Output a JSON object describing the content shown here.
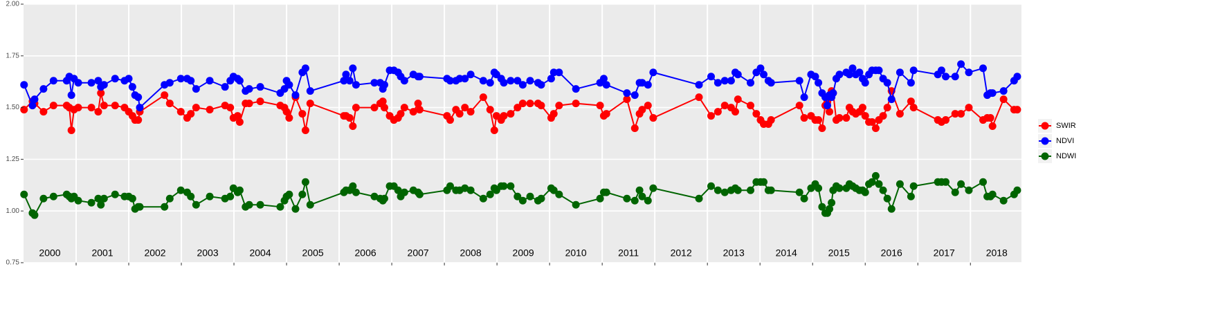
{
  "chart_data": {
    "type": "line",
    "x": [
      2000.01,
      2000.17,
      2000.21,
      2000.38,
      2000.57,
      2000.82,
      2000.87,
      2000.91,
      2000.96,
      2001.04,
      2001.29,
      2001.42,
      2001.47,
      2001.53,
      2001.74,
      2001.92,
      2002.0,
      2002.07,
      2002.12,
      2002.18,
      2002.21,
      2002.68,
      2002.78,
      2002.99,
      2003.11,
      2003.18,
      2003.28,
      2003.54,
      2003.83,
      2003.93,
      2003.99,
      2004.07,
      2004.11,
      2004.22,
      2004.29,
      2004.5,
      2004.88,
      2004.96,
      2005.0,
      2005.05,
      2005.17,
      2005.3,
      2005.36,
      2005.45,
      2006.09,
      2006.13,
      2006.2,
      2006.26,
      2006.32,
      2006.67,
      2006.78,
      2006.83,
      2006.86,
      2006.96,
      2007.04,
      2007.12,
      2007.17,
      2007.24,
      2007.41,
      2007.5,
      2007.53,
      2008.05,
      2008.11,
      2008.22,
      2008.29,
      2008.39,
      2008.5,
      2008.74,
      2008.87,
      2008.95,
      2008.99,
      2009.08,
      2009.13,
      2009.26,
      2009.39,
      2009.49,
      2009.63,
      2009.78,
      2009.84,
      2010.03,
      2010.08,
      2010.18,
      2010.5,
      2010.96,
      2011.03,
      2011.08,
      2011.47,
      2011.62,
      2011.71,
      2011.76,
      2011.87,
      2011.97,
      2012.84,
      2013.07,
      2013.2,
      2013.33,
      2013.45,
      2013.53,
      2013.58,
      2013.82,
      2013.93,
      2014.01,
      2014.07,
      2014.16,
      2014.21,
      2014.75,
      2014.84,
      2014.97,
      2015.05,
      2015.11,
      2015.18,
      2015.24,
      2015.28,
      2015.32,
      2015.36,
      2015.39,
      2015.45,
      2015.51,
      2015.64,
      2015.7,
      2015.76,
      2015.82,
      2015.89,
      2015.95,
      2016.0,
      2016.07,
      2016.13,
      2016.2,
      2016.26,
      2016.34,
      2016.42,
      2016.5,
      2016.66,
      2016.87,
      2016.92,
      2017.38,
      2017.45,
      2017.53,
      2017.71,
      2017.82,
      2017.97,
      2018.24,
      2018.32,
      2018.38,
      2018.42,
      2018.63,
      2018.83,
      2018.89
    ],
    "series": [
      {
        "name": "SWIR",
        "color": "#ff0000",
        "values": [
          1.49,
          1.53,
          1.52,
          1.48,
          1.51,
          1.51,
          1.5,
          1.39,
          1.49,
          1.5,
          1.5,
          1.48,
          1.57,
          1.51,
          1.51,
          1.5,
          1.48,
          1.46,
          1.44,
          1.44,
          1.48,
          1.56,
          1.52,
          1.48,
          1.45,
          1.47,
          1.5,
          1.49,
          1.51,
          1.5,
          1.45,
          1.46,
          1.43,
          1.52,
          1.52,
          1.53,
          1.51,
          1.5,
          1.48,
          1.45,
          1.55,
          1.47,
          1.39,
          1.52,
          1.46,
          1.46,
          1.45,
          1.41,
          1.5,
          1.5,
          1.52,
          1.53,
          1.5,
          1.46,
          1.44,
          1.45,
          1.47,
          1.5,
          1.48,
          1.52,
          1.49,
          1.46,
          1.44,
          1.49,
          1.47,
          1.5,
          1.48,
          1.55,
          1.49,
          1.39,
          1.46,
          1.44,
          1.46,
          1.47,
          1.5,
          1.52,
          1.52,
          1.52,
          1.51,
          1.45,
          1.47,
          1.51,
          1.52,
          1.51,
          1.46,
          1.47,
          1.54,
          1.4,
          1.47,
          1.49,
          1.51,
          1.45,
          1.55,
          1.46,
          1.48,
          1.51,
          1.5,
          1.48,
          1.54,
          1.51,
          1.47,
          1.44,
          1.42,
          1.42,
          1.44,
          1.51,
          1.45,
          1.46,
          1.44,
          1.44,
          1.4,
          1.51,
          1.53,
          1.48,
          1.58,
          1.57,
          1.44,
          1.45,
          1.45,
          1.5,
          1.48,
          1.47,
          1.48,
          1.5,
          1.46,
          1.43,
          1.43,
          1.4,
          1.44,
          1.46,
          1.5,
          1.58,
          1.47,
          1.53,
          1.5,
          1.44,
          1.43,
          1.44,
          1.47,
          1.47,
          1.5,
          1.44,
          1.45,
          1.45,
          1.41,
          1.54,
          1.49,
          1.49
        ]
      },
      {
        "name": "NDVI",
        "color": "#0000ff",
        "values": [
          1.61,
          1.51,
          1.54,
          1.59,
          1.63,
          1.63,
          1.65,
          1.56,
          1.64,
          1.62,
          1.62,
          1.63,
          1.6,
          1.61,
          1.64,
          1.63,
          1.64,
          1.6,
          1.56,
          1.55,
          1.5,
          1.61,
          1.62,
          1.64,
          1.64,
          1.63,
          1.59,
          1.63,
          1.6,
          1.63,
          1.65,
          1.64,
          1.63,
          1.58,
          1.59,
          1.6,
          1.57,
          1.59,
          1.63,
          1.61,
          1.56,
          1.67,
          1.69,
          1.58,
          1.63,
          1.66,
          1.63,
          1.69,
          1.61,
          1.62,
          1.62,
          1.59,
          1.61,
          1.68,
          1.68,
          1.67,
          1.65,
          1.63,
          1.66,
          1.65,
          1.65,
          1.64,
          1.63,
          1.63,
          1.64,
          1.64,
          1.66,
          1.63,
          1.62,
          1.67,
          1.66,
          1.64,
          1.62,
          1.63,
          1.63,
          1.61,
          1.63,
          1.62,
          1.61,
          1.64,
          1.67,
          1.67,
          1.59,
          1.62,
          1.64,
          1.61,
          1.57,
          1.56,
          1.62,
          1.62,
          1.61,
          1.67,
          1.61,
          1.65,
          1.62,
          1.63,
          1.63,
          1.67,
          1.66,
          1.62,
          1.67,
          1.69,
          1.66,
          1.63,
          1.62,
          1.63,
          1.55,
          1.66,
          1.65,
          1.62,
          1.57,
          1.55,
          1.51,
          1.56,
          1.55,
          1.57,
          1.64,
          1.66,
          1.67,
          1.66,
          1.69,
          1.66,
          1.67,
          1.64,
          1.62,
          1.66,
          1.68,
          1.68,
          1.68,
          1.64,
          1.62,
          1.54,
          1.67,
          1.62,
          1.68,
          1.66,
          1.68,
          1.65,
          1.65,
          1.71,
          1.67,
          1.69,
          1.56,
          1.57,
          1.57,
          1.58,
          1.63,
          1.65
        ]
      },
      {
        "name": "NDWI",
        "color": "#006400",
        "values": [
          1.08,
          0.99,
          0.98,
          1.06,
          1.07,
          1.08,
          1.07,
          1.06,
          1.07,
          1.05,
          1.04,
          1.06,
          1.03,
          1.06,
          1.08,
          1.07,
          1.07,
          1.06,
          1.01,
          1.02,
          1.02,
          1.02,
          1.06,
          1.1,
          1.09,
          1.07,
          1.03,
          1.07,
          1.06,
          1.07,
          1.11,
          1.09,
          1.1,
          1.02,
          1.03,
          1.03,
          1.02,
          1.05,
          1.07,
          1.08,
          1.01,
          1.08,
          1.14,
          1.03,
          1.09,
          1.1,
          1.1,
          1.12,
          1.09,
          1.07,
          1.06,
          1.05,
          1.06,
          1.12,
          1.12,
          1.1,
          1.07,
          1.09,
          1.1,
          1.09,
          1.08,
          1.1,
          1.12,
          1.1,
          1.1,
          1.11,
          1.1,
          1.06,
          1.08,
          1.11,
          1.1,
          1.12,
          1.12,
          1.12,
          1.07,
          1.05,
          1.07,
          1.05,
          1.06,
          1.11,
          1.1,
          1.08,
          1.03,
          1.06,
          1.09,
          1.09,
          1.06,
          1.05,
          1.1,
          1.07,
          1.05,
          1.11,
          1.06,
          1.12,
          1.1,
          1.09,
          1.1,
          1.11,
          1.1,
          1.1,
          1.14,
          1.14,
          1.14,
          1.1,
          1.1,
          1.09,
          1.06,
          1.11,
          1.13,
          1.11,
          1.02,
          0.99,
          0.99,
          1.01,
          1.04,
          1.1,
          1.12,
          1.11,
          1.11,
          1.13,
          1.12,
          1.11,
          1.1,
          1.1,
          1.09,
          1.13,
          1.14,
          1.17,
          1.13,
          1.1,
          1.06,
          1.01,
          1.13,
          1.07,
          1.12,
          1.14,
          1.14,
          1.14,
          1.09,
          1.13,
          1.1,
          1.14,
          1.07,
          1.07,
          1.08,
          1.05,
          1.08,
          1.1
        ]
      }
    ],
    "xlim": [
      2000,
      2018.97
    ],
    "xticks": [
      2001,
      2002,
      2003,
      2004,
      2005,
      2006,
      2007,
      2008,
      2009,
      2010,
      2011,
      2012,
      2013,
      2014,
      2015,
      2016,
      2017,
      2018
    ],
    "xlabels": [
      {
        "value": 2000.5,
        "label": "2000"
      },
      {
        "value": 2001.5,
        "label": "2001"
      },
      {
        "value": 2002.5,
        "label": "2002"
      },
      {
        "value": 2003.5,
        "label": "2003"
      },
      {
        "value": 2004.5,
        "label": "2004"
      },
      {
        "value": 2005.5,
        "label": "2005"
      },
      {
        "value": 2006.5,
        "label": "2006"
      },
      {
        "value": 2007.5,
        "label": "2007"
      },
      {
        "value": 2008.5,
        "label": "2008"
      },
      {
        "value": 2009.5,
        "label": "2009"
      },
      {
        "value": 2010.5,
        "label": "2010"
      },
      {
        "value": 2011.5,
        "label": "2011"
      },
      {
        "value": 2012.5,
        "label": "2012"
      },
      {
        "value": 2013.5,
        "label": "2013"
      },
      {
        "value": 2014.5,
        "label": "2014"
      },
      {
        "value": 2015.5,
        "label": "2015"
      },
      {
        "value": 2016.5,
        "label": "2016"
      },
      {
        "value": 2017.5,
        "label": "2017"
      },
      {
        "value": 2018.5,
        "label": "2018"
      }
    ],
    "ylim": [
      0.75,
      2.0
    ],
    "yticks": [
      {
        "value": 0.75,
        "label": "0.75"
      },
      {
        "value": 1.0,
        "label": "1.00"
      },
      {
        "value": 1.25,
        "label": "1.25"
      },
      {
        "value": 1.5,
        "label": "1.50"
      },
      {
        "value": 1.75,
        "label": "1.75"
      },
      {
        "value": 2.0,
        "label": "2.00"
      }
    ],
    "grid": true,
    "legend": "right"
  }
}
